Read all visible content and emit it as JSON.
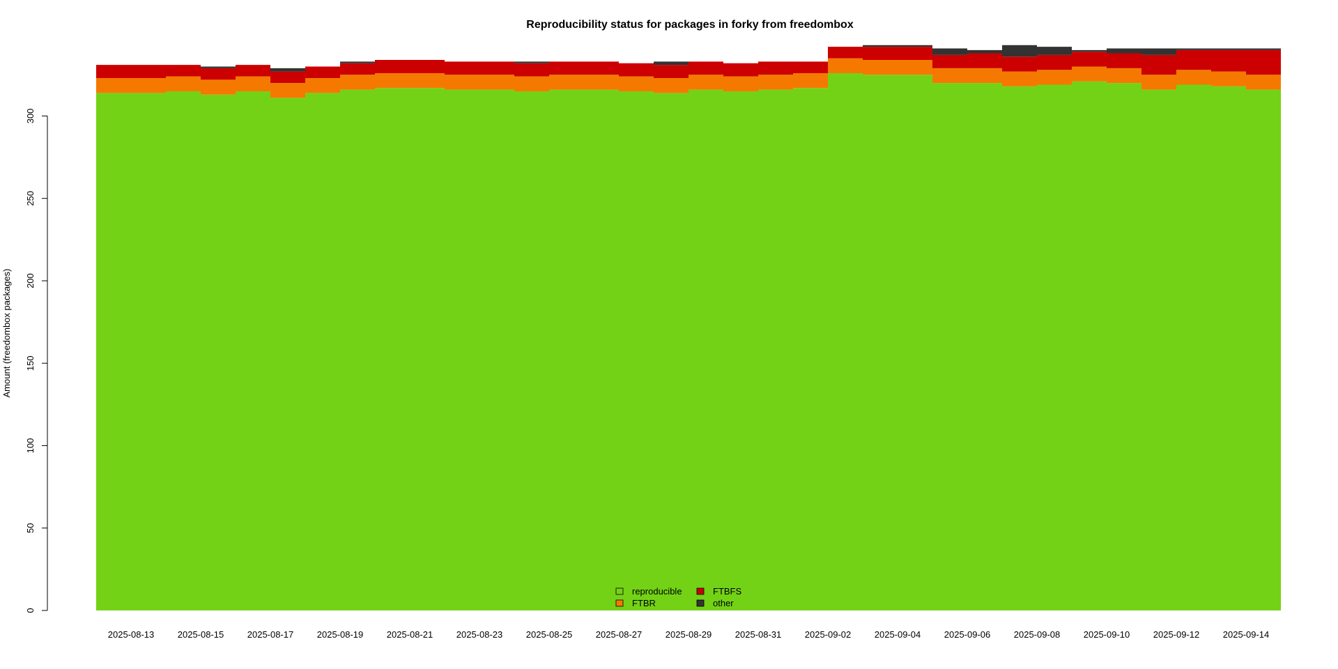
{
  "chart_data": {
    "type": "area",
    "title": "Reproducibility status for packages in forky from freedombox",
    "xlabel": "",
    "ylabel": "Amount (freedombox packages)",
    "ylim": [
      0,
      345
    ],
    "yticks": [
      0,
      50,
      100,
      150,
      200,
      250,
      300
    ],
    "x": [
      "2025-08-12",
      "2025-08-13",
      "2025-08-14",
      "2025-08-15",
      "2025-08-16",
      "2025-08-17",
      "2025-08-18",
      "2025-08-19",
      "2025-08-20",
      "2025-08-21",
      "2025-08-22",
      "2025-08-23",
      "2025-08-24",
      "2025-08-25",
      "2025-08-26",
      "2025-08-27",
      "2025-08-28",
      "2025-08-29",
      "2025-08-30",
      "2025-08-31",
      "2025-09-01",
      "2025-09-02",
      "2025-09-03",
      "2025-09-04",
      "2025-09-05",
      "2025-09-06",
      "2025-09-07",
      "2025-09-08",
      "2025-09-09",
      "2025-09-10",
      "2025-09-11",
      "2025-09-12",
      "2025-09-13",
      "2025-09-14"
    ],
    "x_tick_labels": [
      "2025-08-13",
      "2025-08-15",
      "2025-08-17",
      "2025-08-19",
      "2025-08-21",
      "2025-08-23",
      "2025-08-25",
      "2025-08-27",
      "2025-08-29",
      "2025-08-31",
      "2025-09-02",
      "2025-09-04",
      "2025-09-06",
      "2025-09-08",
      "2025-09-10",
      "2025-09-12",
      "2025-09-14"
    ],
    "series": [
      {
        "name": "reproducible",
        "color": "#73d216",
        "values": [
          314,
          314,
          315,
          313,
          315,
          311,
          314,
          316,
          317,
          317,
          316,
          316,
          315,
          316,
          316,
          315,
          314,
          316,
          315,
          316,
          317,
          326,
          325,
          325,
          320,
          320,
          318,
          319,
          321,
          320,
          316,
          319,
          318,
          316
        ]
      },
      {
        "name": "FTBR",
        "color": "#f57900",
        "values": [
          9,
          9,
          9,
          9,
          9,
          9,
          9,
          9,
          9,
          9,
          9,
          9,
          9,
          9,
          9,
          9,
          9,
          9,
          9,
          9,
          9,
          9,
          9,
          9,
          9,
          9,
          9,
          9,
          9,
          9,
          9,
          9,
          9,
          9
        ]
      },
      {
        "name": "FTBFS",
        "color": "#cc0000",
        "values": [
          8,
          8,
          7,
          7,
          7,
          7,
          7,
          7,
          8,
          8,
          8,
          8,
          8,
          8,
          8,
          8,
          8,
          8,
          8,
          8,
          7,
          7,
          8,
          8,
          8,
          9,
          9,
          9,
          9,
          9,
          12,
          12,
          13,
          15
        ]
      },
      {
        "name": "other",
        "color": "#333333",
        "values": [
          0,
          0,
          0,
          1,
          0,
          2,
          0,
          1,
          0,
          0,
          0,
          0,
          1,
          0,
          0,
          0,
          2,
          0,
          0,
          0,
          0,
          0,
          1,
          1,
          4,
          2,
          7,
          5,
          1,
          3,
          4,
          1,
          1,
          1
        ]
      }
    ],
    "legend_position": "bottom-center",
    "grid": false
  }
}
